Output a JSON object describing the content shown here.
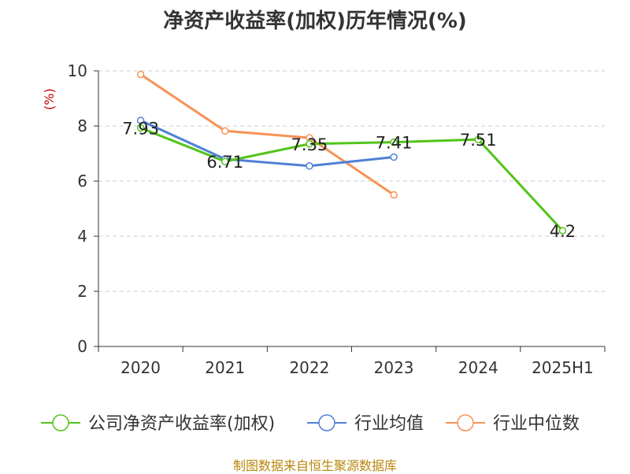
{
  "chart_data": {
    "type": "line",
    "title": "净资产收益率(加权)历年情况(%)",
    "ylabel": "(%)",
    "xlabel": "",
    "categories": [
      "2020",
      "2021",
      "2022",
      "2023",
      "2024",
      "2025H1"
    ],
    "ylim": [
      0,
      10
    ],
    "yticks": [
      0,
      2,
      4,
      6,
      8,
      10
    ],
    "grid": true,
    "legend_position": "bottom",
    "series": [
      {
        "name": "公司净资产收益率(加权)",
        "color": "#52c41a",
        "values": [
          7.93,
          6.71,
          7.35,
          7.41,
          7.51,
          4.2
        ],
        "labels": [
          "7.93",
          "6.71",
          "7.35",
          "7.41",
          "7.51",
          "4.2"
        ]
      },
      {
        "name": "行业均值",
        "color": "#4f81d6",
        "values": [
          8.2,
          6.8,
          6.55,
          6.87,
          null,
          null
        ]
      },
      {
        "name": "行业中位数",
        "color": "#f79256",
        "values": [
          9.87,
          7.82,
          7.57,
          5.5,
          null,
          null
        ]
      }
    ]
  },
  "footer": {
    "source": "制图数据来自恒生聚源数据库"
  },
  "colors": {
    "title": "#333333",
    "ylabel": "#cc0000",
    "grid": "#cccccc",
    "axis": "#333333",
    "source": "#b8860b"
  }
}
